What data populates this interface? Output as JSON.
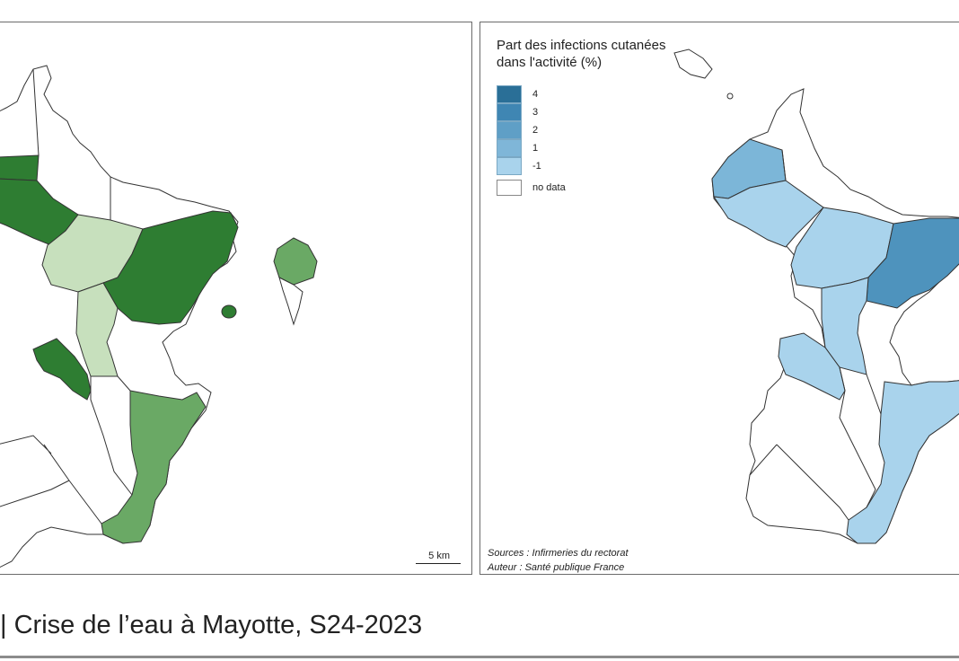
{
  "legend": {
    "title_line1": "Part des infections cutanées",
    "title_line2": "dans l'activité (%)",
    "items": [
      {
        "label": "4",
        "color": "#2a6f97"
      },
      {
        "label": "3",
        "color": "#3f86b3"
      },
      {
        "label": "2",
        "color": "#5f9fc6"
      },
      {
        "label": "1",
        "color": "#7fb6d8"
      },
      {
        "label": "-1",
        "color": "#a9d3ec"
      }
    ],
    "no_data_label": "no data"
  },
  "scale": {
    "label": "5 km"
  },
  "sources": {
    "line1": "Sources : Infirmeries du rectorat",
    "line2": "Auteur : Santé publique France"
  },
  "footer": {
    "title": "| Crise de l’eau à Mayotte, S24-2023"
  },
  "map_colors": {
    "green_dark": "#2e7d32",
    "green_medium": "#6aa965",
    "green_light": "#c7e0bd",
    "blue_dark": "#4e93bd",
    "blue_medium": "#7cb6d8",
    "blue_light": "#a9d3ec",
    "no_data": "#ffffff"
  }
}
